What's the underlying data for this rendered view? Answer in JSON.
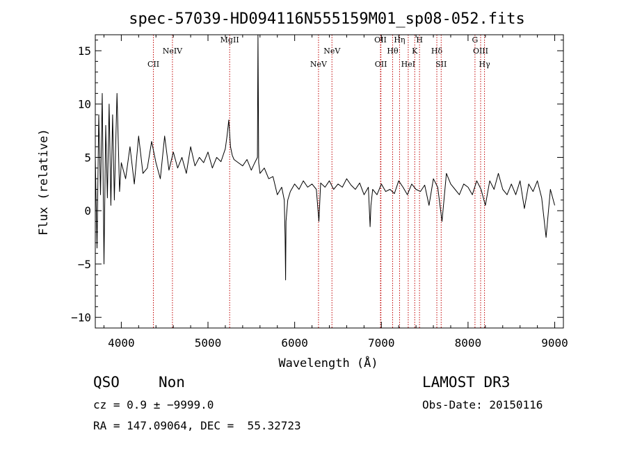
{
  "chart_data": {
    "type": "line",
    "title": "spec-57039-HD094116N555159M01_sp08-052.fits",
    "xlabel": "Wavelength (Å)",
    "ylabel": "Flux (relative)",
    "xlim": [
      3700,
      9100
    ],
    "ylim": [
      -11,
      16.5
    ],
    "xticks": [
      4000,
      5000,
      6000,
      7000,
      8000,
      9000
    ],
    "xtick_labels": [
      "4000",
      "5000",
      "6000",
      "7000",
      "8000",
      "9000"
    ],
    "yticks": [
      -10,
      -5,
      0,
      5,
      10,
      15
    ],
    "ytick_labels": [
      "−10",
      "−5",
      "0",
      "5",
      "10",
      "15"
    ],
    "grid": false,
    "series": [
      {
        "name": "flux",
        "x": [
          3700,
          3720,
          3740,
          3760,
          3780,
          3800,
          3820,
          3840,
          3860,
          3880,
          3900,
          3920,
          3950,
          3980,
          4000,
          4050,
          4100,
          4150,
          4200,
          4250,
          4300,
          4350,
          4400,
          4450,
          4500,
          4550,
          4600,
          4650,
          4700,
          4750,
          4800,
          4850,
          4900,
          4950,
          5000,
          5050,
          5100,
          5150,
          5200,
          5220,
          5240,
          5250,
          5260,
          5280,
          5300,
          5350,
          5400,
          5450,
          5500,
          5540,
          5570,
          5577,
          5585,
          5600,
          5650,
          5700,
          5750,
          5800,
          5850,
          5880,
          5890,
          5895,
          5900,
          5920,
          5950,
          6000,
          6050,
          6100,
          6150,
          6200,
          6250,
          6280,
          6300,
          6350,
          6400,
          6450,
          6500,
          6550,
          6600,
          6650,
          6700,
          6750,
          6800,
          6850,
          6870,
          6880,
          6900,
          6950,
          7000,
          7050,
          7100,
          7150,
          7200,
          7250,
          7300,
          7350,
          7400,
          7450,
          7500,
          7550,
          7600,
          7650,
          7700,
          7750,
          7800,
          7850,
          7900,
          7950,
          8000,
          8050,
          8100,
          8150,
          8200,
          8250,
          8300,
          8350,
          8400,
          8450,
          8500,
          8550,
          8600,
          8650,
          8700,
          8750,
          8800,
          8850,
          8900,
          8950,
          9000
        ],
        "y": [
          5,
          -3.5,
          9,
          1.5,
          11,
          -5,
          8,
          1.2,
          10,
          0.5,
          9,
          1,
          11,
          1.8,
          4.5,
          3,
          6,
          2.5,
          7,
          3.5,
          4,
          6.5,
          4.5,
          3,
          7,
          3.8,
          5.5,
          4,
          5,
          3.5,
          6,
          4.2,
          5,
          4.5,
          5.5,
          4,
          5,
          4.6,
          5.8,
          7,
          8.5,
          7.2,
          6,
          5.2,
          4.8,
          4.5,
          4.2,
          4.8,
          3.8,
          4.5,
          5,
          16.5,
          4.5,
          3.5,
          4,
          3,
          3.2,
          1.5,
          2.2,
          1,
          -2.5,
          -6.5,
          -1,
          1,
          1.8,
          2.5,
          2,
          2.8,
          2.2,
          2.5,
          2,
          -1,
          2.6,
          2.2,
          2.8,
          2,
          2.5,
          2.2,
          3,
          2.4,
          2,
          2.6,
          1.5,
          2.2,
          -1.5,
          0.5,
          2,
          1.5,
          2.5,
          1.8,
          2,
          1.6,
          2.8,
          2.2,
          1.5,
          2.5,
          2,
          1.8,
          2.4,
          0.5,
          3,
          2.2,
          -1,
          3.5,
          2.5,
          2,
          1.5,
          2.5,
          2.2,
          1.5,
          2.8,
          2,
          0.5,
          2.8,
          2,
          3.5,
          2,
          1.5,
          2.5,
          1.5,
          2.8,
          0.2,
          2.5,
          1.8,
          2.8,
          1.2,
          -2.5,
          2,
          0.5
        ]
      }
    ],
    "lines": [
      {
        "label": "CII",
        "x": 4370,
        "row": 2
      },
      {
        "label": "NeIV",
        "x": 4590,
        "row": 1
      },
      {
        "label": "MgII",
        "x": 5250,
        "row": 0
      },
      {
        "label": "NeV",
        "x": 6275,
        "row": 2
      },
      {
        "label": "NeV",
        "x": 6430,
        "row": 1
      },
      {
        "label": "OII",
        "x": 6990,
        "row": 0
      },
      {
        "label": "OII",
        "x": 6995,
        "row": 2
      },
      {
        "label": "Hθ",
        "x": 7130,
        "row": 1
      },
      {
        "label": "Hη",
        "x": 7210,
        "row": 0
      },
      {
        "label": "HeI",
        "x": 7310,
        "row": 2
      },
      {
        "label": "K",
        "x": 7385,
        "row": 1
      },
      {
        "label": "H",
        "x": 7440,
        "row": 0
      },
      {
        "label": "Hδ",
        "x": 7640,
        "row": 1
      },
      {
        "label": "SII",
        "x": 7690,
        "row": 2
      },
      {
        "label": "G",
        "x": 8080,
        "row": 0
      },
      {
        "label": "OIII",
        "x": 8145,
        "row": 1
      },
      {
        "label": "Hγ",
        "x": 8190,
        "row": 2
      }
    ]
  },
  "info": {
    "class": "QSO",
    "subclass": "Non",
    "survey": "LAMOST DR3",
    "cz": "cz = 0.9 ± −9999.0",
    "obs_date": "Obs-Date: 20150116",
    "coords": "RA = 147.09064, DEC =  55.32723"
  }
}
